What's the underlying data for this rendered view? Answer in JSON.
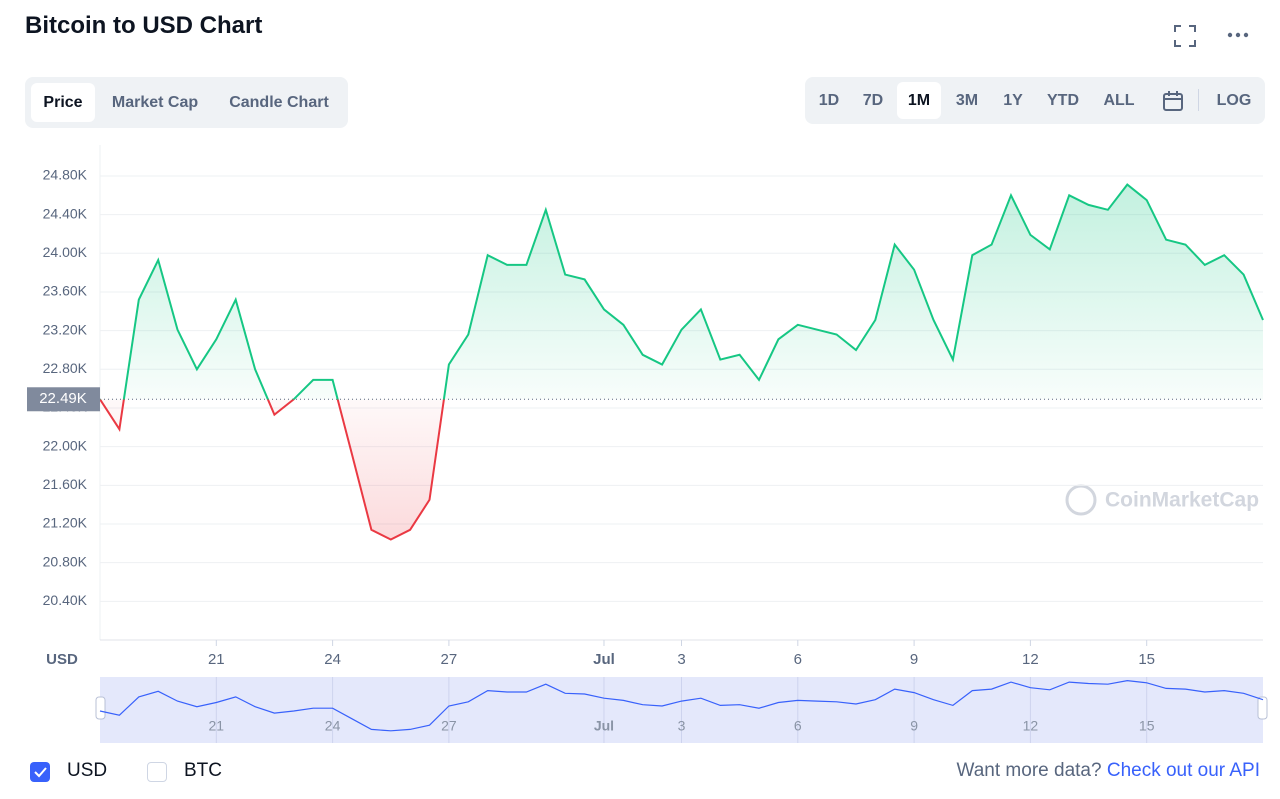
{
  "chart_data": {
    "type": "line",
    "title": "Bitcoin to USD Chart",
    "axis_label": "USD",
    "watermark": "CoinMarketCap",
    "categories": [
      null,
      null,
      null,
      null,
      null,
      null,
      "21",
      null,
      null,
      null,
      null,
      null,
      "24",
      null,
      null,
      null,
      null,
      null,
      "27",
      null,
      null,
      null,
      null,
      null,
      null,
      null,
      "Jul",
      null,
      null,
      null,
      "3",
      null,
      null,
      null,
      null,
      null,
      "6",
      null,
      null,
      null,
      null,
      null,
      "9",
      null,
      null,
      null,
      null,
      null,
      "12",
      null,
      null,
      null,
      null,
      null,
      "15",
      null,
      null,
      null,
      null,
      null,
      null
    ],
    "series": [
      {
        "name": "USD",
        "color": "#16c784",
        "negative_color": "#ea3943",
        "values": [
          22490,
          22180,
          23520,
          23930,
          23210,
          22800,
          23110,
          23520,
          22800,
          22330,
          22490,
          22690,
          22690,
          21920,
          21140,
          21040,
          21140,
          21450,
          22850,
          23160,
          23980,
          23880,
          23880,
          24450,
          23780,
          23730,
          23420,
          23260,
          22950,
          22850,
          23210,
          23420,
          22900,
          22950,
          22690,
          23110,
          23260,
          23210,
          23160,
          23000,
          23310,
          24090,
          23830,
          23310,
          22900,
          23980,
          24090,
          24600,
          24190,
          24040,
          24600,
          24500,
          24450,
          24710,
          24550,
          24140,
          24090,
          23880,
          23980,
          23780,
          23310
        ]
      }
    ],
    "reference": {
      "value": 22490,
      "label": "22.49K"
    },
    "ylim": [
      20000,
      25120
    ],
    "yticks": [
      {
        "value": 20400,
        "label": "20.40K"
      },
      {
        "value": 20800,
        "label": "20.80K"
      },
      {
        "value": 21200,
        "label": "21.20K"
      },
      {
        "value": 21600,
        "label": "21.60K"
      },
      {
        "value": 22000,
        "label": "22.00K"
      },
      {
        "value": 22400,
        "label": "22.40K"
      },
      {
        "value": 22800,
        "label": "22.80K"
      },
      {
        "value": 23200,
        "label": "23.20K"
      },
      {
        "value": 23600,
        "label": "23.60K"
      },
      {
        "value": 24000,
        "label": "24.00K"
      },
      {
        "value": 24400,
        "label": "24.40K"
      },
      {
        "value": 24800,
        "label": "24.80K"
      }
    ],
    "grid": true
  },
  "controls": {
    "tabs": [
      "Price",
      "Market Cap",
      "Candle Chart"
    ],
    "ranges": [
      "1D",
      "7D",
      "1M",
      "3M",
      "1Y",
      "YTD",
      "ALL"
    ],
    "log": "LOG"
  },
  "currencies": [
    "USD",
    "BTC"
  ],
  "footer": {
    "text": "Want more data?",
    "link": "Check out our API"
  }
}
